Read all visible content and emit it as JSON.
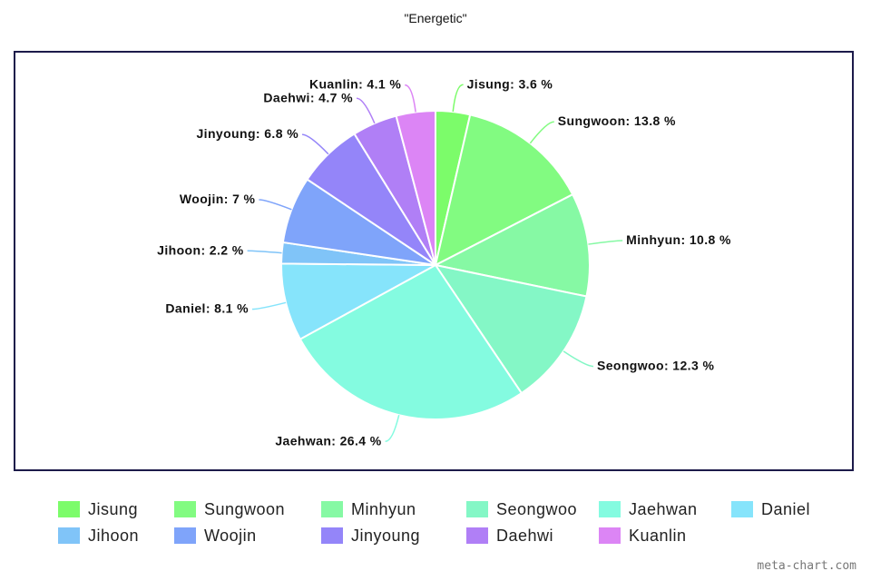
{
  "chart_data": {
    "type": "pie",
    "title": "\"Energetic\"",
    "slices": [
      {
        "name": "Jisung",
        "value": 3.6,
        "label": "Jisung: 3.6 %",
        "color": "#7cfc6a"
      },
      {
        "name": "Sungwoon",
        "value": 13.8,
        "label": "Sungwoon: 13.8 %",
        "color": "#82fb81"
      },
      {
        "name": "Minhyun",
        "value": 10.8,
        "label": "Minhyun: 10.8 %",
        "color": "#86f9a4"
      },
      {
        "name": "Seongwoo",
        "value": 12.3,
        "label": "Seongwoo: 12.3 %",
        "color": "#84f7c6"
      },
      {
        "name": "Jaehwan",
        "value": 26.4,
        "label": "Jaehwan: 26.4 %",
        "color": "#84fbe0"
      },
      {
        "name": "Daniel",
        "value": 8.1,
        "label": "Daniel: 8.1 %",
        "color": "#86e4fb"
      },
      {
        "name": "Jihoon",
        "value": 2.2,
        "label": "Jihoon: 2.2 %",
        "color": "#80c4f8"
      },
      {
        "name": "Woojin",
        "value": 7,
        "label": "Woojin: 7 %",
        "color": "#7fa4fa"
      },
      {
        "name": "Jinyoung",
        "value": 6.8,
        "label": "Jinyoung: 6.8 %",
        "color": "#9485f9"
      },
      {
        "name": "Daehwi",
        "value": 4.7,
        "label": "Daehwi: 4.7 %",
        "color": "#b07ff6"
      },
      {
        "name": "Kuanlin",
        "value": 4.1,
        "label": "Kuanlin: 4.1 %",
        "color": "#dc85f5"
      }
    ],
    "legend_position": "bottom"
  },
  "watermark": "meta-chart.com"
}
